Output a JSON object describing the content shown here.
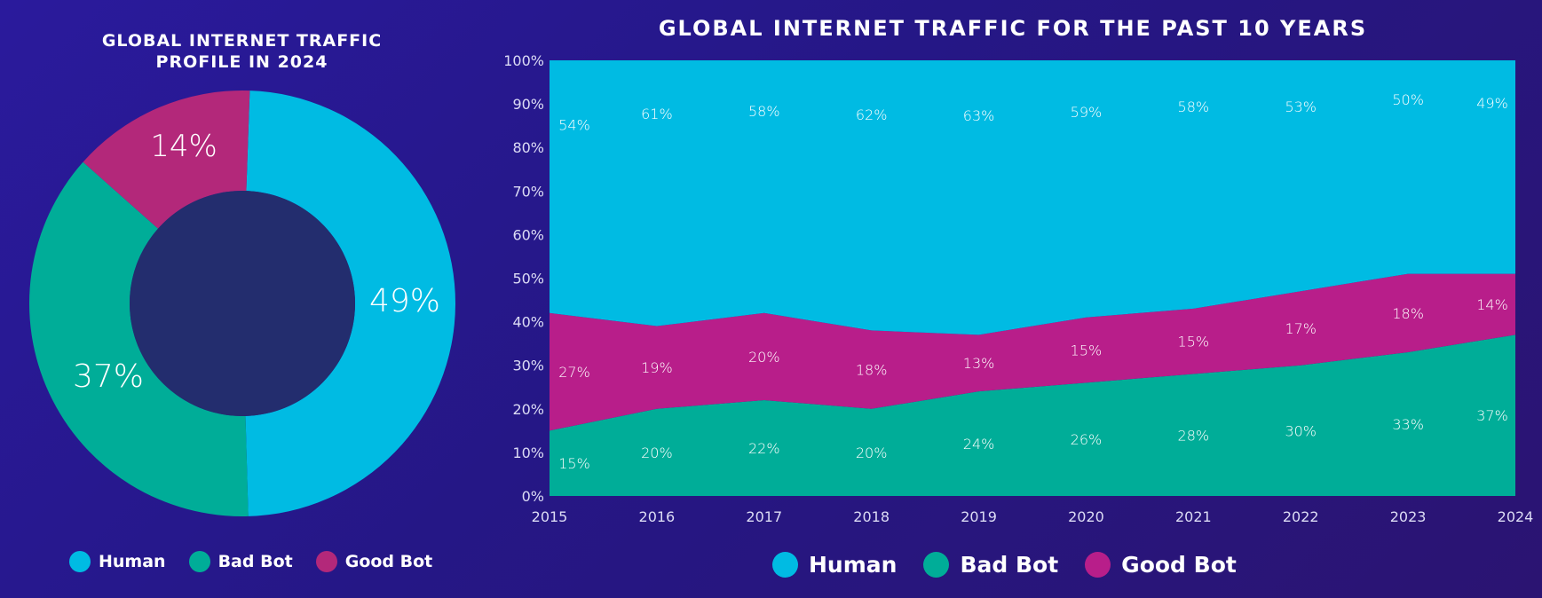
{
  "colors": {
    "human": "#00bbe3",
    "bad_bot": "#00ad98",
    "good_bot": "#b81e8a",
    "donut_good_bot": "#b3287a",
    "donut_hole": "#232d6e"
  },
  "chart_data": [
    {
      "type": "pie",
      "variant": "donut",
      "title_lines": [
        "GLOBAL INTERNET TRAFFIC",
        "PROFILE IN 2024"
      ],
      "slices": [
        {
          "name": "Human",
          "value": 49,
          "label": "49%"
        },
        {
          "name": "Bad Bot",
          "value": 37,
          "label": "37%"
        },
        {
          "name": "Good Bot",
          "value": 14,
          "label": "14%"
        }
      ],
      "legend": [
        "Human",
        "Bad Bot",
        "Good Bot"
      ]
    },
    {
      "type": "area",
      "stacked": true,
      "title": "GLOBAL INTERNET TRAFFIC FOR THE PAST 10 YEARS",
      "categories": [
        "2015",
        "2016",
        "2017",
        "2018",
        "2019",
        "2020",
        "2021",
        "2022",
        "2023",
        "2024"
      ],
      "series": [
        {
          "name": "Bad Bot",
          "values": [
            15,
            20,
            22,
            20,
            24,
            26,
            28,
            30,
            33,
            37
          ],
          "labels": [
            "15%",
            "20%",
            "22%",
            "20%",
            "24%",
            "26%",
            "28%",
            "30%",
            "33%",
            "37%"
          ]
        },
        {
          "name": "Good Bot",
          "values": [
            27,
            19,
            20,
            18,
            13,
            15,
            15,
            17,
            18,
            14
          ],
          "labels": [
            "27%",
            "19%",
            "20%",
            "18%",
            "13%",
            "15%",
            "15%",
            "17%",
            "18%",
            "14%"
          ]
        },
        {
          "name": "Human",
          "values": [
            54,
            61,
            58,
            62,
            63,
            59,
            58,
            53,
            50,
            49
          ],
          "labels": [
            "54%",
            "61%",
            "58%",
            "62%",
            "63%",
            "59%",
            "58%",
            "53%",
            "50%",
            "49%"
          ]
        }
      ],
      "y_ticks": [
        "0%",
        "10%",
        "20%",
        "30%",
        "40%",
        "50%",
        "60%",
        "70%",
        "80%",
        "90%",
        "100%"
      ],
      "ylim": [
        0,
        100
      ],
      "legend": [
        "Human",
        "Bad Bot",
        "Good Bot"
      ]
    }
  ]
}
